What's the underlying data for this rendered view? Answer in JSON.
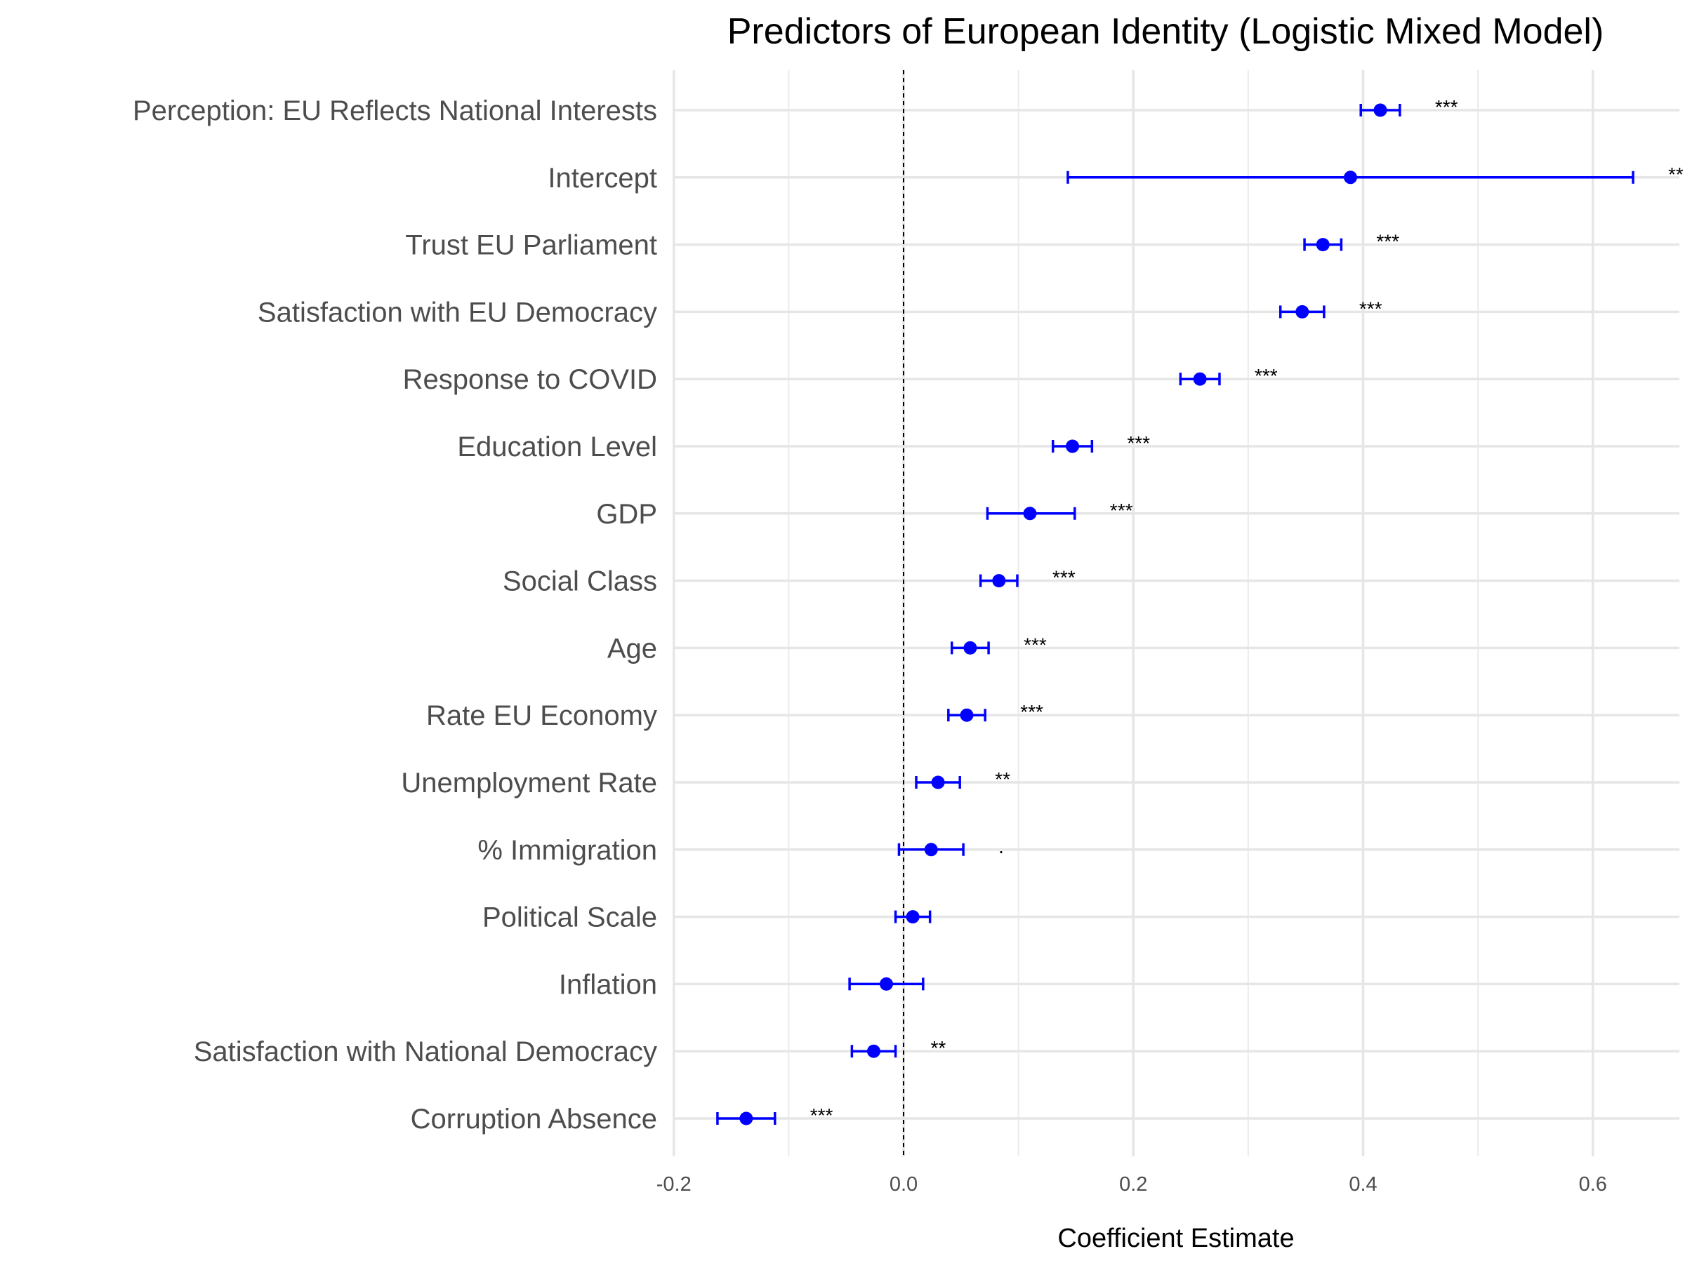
{
  "chart_data": {
    "type": "scatter",
    "subtype": "coefficient-plot-with-error-bars",
    "title": "Predictors of European Identity (Logistic Mixed Model)",
    "xlabel": "Coefficient Estimate",
    "ylabel": "",
    "xlim": [
      -0.2,
      0.65
    ],
    "x_ticks": [
      -0.2,
      0.0,
      0.2,
      0.4,
      0.6
    ],
    "x_tick_labels": [
      "-0.2",
      "0.0",
      "0.2",
      "0.4",
      "0.6"
    ],
    "reference_line": {
      "x": 0,
      "style": "dashed"
    },
    "grid": true,
    "point_color": "#0000ff",
    "series": [
      {
        "term": "Perception: EU Reflects National Interests",
        "estimate": 0.415,
        "ci_low": 0.398,
        "ci_high": 0.432,
        "significance": "***"
      },
      {
        "term": "Intercept",
        "estimate": 0.389,
        "ci_low": 0.143,
        "ci_high": 0.635,
        "significance": "**"
      },
      {
        "term": "Trust EU Parliament",
        "estimate": 0.365,
        "ci_low": 0.349,
        "ci_high": 0.381,
        "significance": "***"
      },
      {
        "term": "Satisfaction with EU Democracy",
        "estimate": 0.347,
        "ci_low": 0.328,
        "ci_high": 0.366,
        "significance": "***"
      },
      {
        "term": "Response to COVID",
        "estimate": 0.258,
        "ci_low": 0.241,
        "ci_high": 0.275,
        "significance": "***"
      },
      {
        "term": "Education Level",
        "estimate": 0.147,
        "ci_low": 0.13,
        "ci_high": 0.164,
        "significance": "***"
      },
      {
        "term": "GDP",
        "estimate": 0.11,
        "ci_low": 0.073,
        "ci_high": 0.149,
        "significance": "***"
      },
      {
        "term": "Social Class",
        "estimate": 0.083,
        "ci_low": 0.067,
        "ci_high": 0.099,
        "significance": "***"
      },
      {
        "term": "Age",
        "estimate": 0.058,
        "ci_low": 0.042,
        "ci_high": 0.074,
        "significance": "***"
      },
      {
        "term": "Rate EU Economy",
        "estimate": 0.055,
        "ci_low": 0.039,
        "ci_high": 0.071,
        "significance": "***"
      },
      {
        "term": "Unemployment Rate",
        "estimate": 0.03,
        "ci_low": 0.011,
        "ci_high": 0.049,
        "significance": "**"
      },
      {
        "term": "% Immigration",
        "estimate": 0.024,
        "ci_low": -0.004,
        "ci_high": 0.052,
        "significance": "."
      },
      {
        "term": "Political Scale",
        "estimate": 0.008,
        "ci_low": -0.007,
        "ci_high": 0.023,
        "significance": ""
      },
      {
        "term": "Inflation",
        "estimate": -0.015,
        "ci_low": -0.047,
        "ci_high": 0.017,
        "significance": ""
      },
      {
        "term": "Satisfaction with National Democracy",
        "estimate": -0.026,
        "ci_low": -0.045,
        "ci_high": -0.007,
        "significance": "**"
      },
      {
        "term": "Corruption Absence",
        "estimate": -0.137,
        "ci_low": -0.162,
        "ci_high": -0.112,
        "significance": "***"
      }
    ]
  }
}
